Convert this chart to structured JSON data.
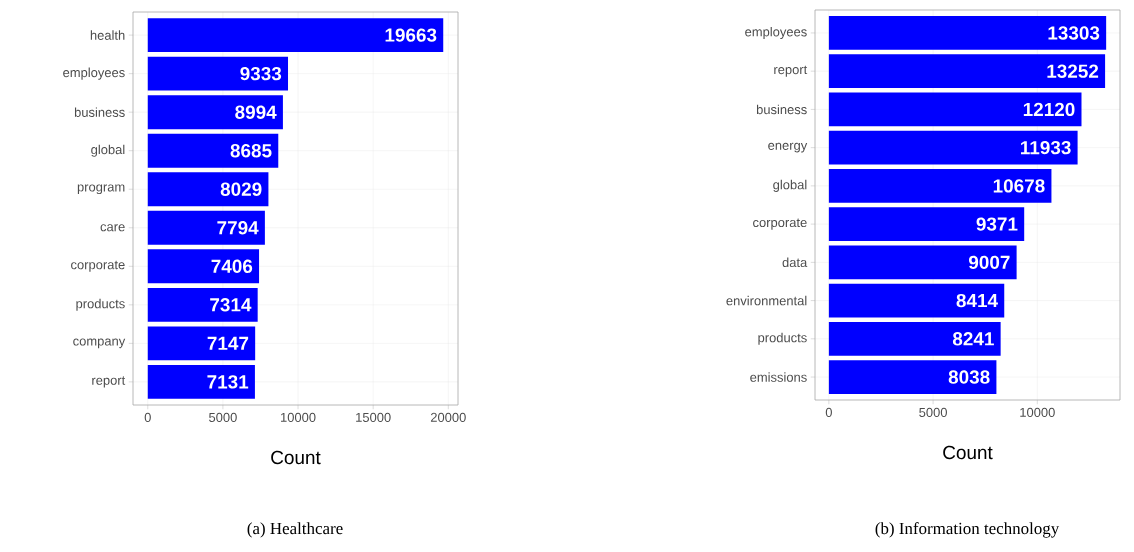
{
  "chart_data": [
    {
      "type": "bar",
      "orientation": "horizontal",
      "title": "(a) Healthcare",
      "xlabel": "Count",
      "categories": [
        "health",
        "employees",
        "business",
        "global",
        "program",
        "care",
        "corporate",
        "products",
        "company",
        "report"
      ],
      "values": [
        19663,
        9333,
        8994,
        8685,
        8029,
        7794,
        7406,
        7314,
        7147,
        7131
      ],
      "color": "#0000ff",
      "data_labels": true,
      "grid": true,
      "xlim": [
        -983,
        20646
      ],
      "xticks": [
        0,
        5000,
        10000,
        15000,
        20000
      ]
    },
    {
      "type": "bar",
      "orientation": "horizontal",
      "title": "(b) Information technology",
      "xlabel": "Count",
      "categories": [
        "employees",
        "report",
        "business",
        "energy",
        "global",
        "corporate",
        "data",
        "environmental",
        "products",
        "emissions"
      ],
      "values": [
        13303,
        13252,
        12120,
        11933,
        10678,
        9371,
        9007,
        8414,
        8241,
        8038
      ],
      "color": "#0000ff",
      "data_labels": true,
      "grid": true,
      "xlim": [
        -665,
        13968
      ],
      "xticks": [
        0,
        5000,
        10000
      ]
    }
  ]
}
